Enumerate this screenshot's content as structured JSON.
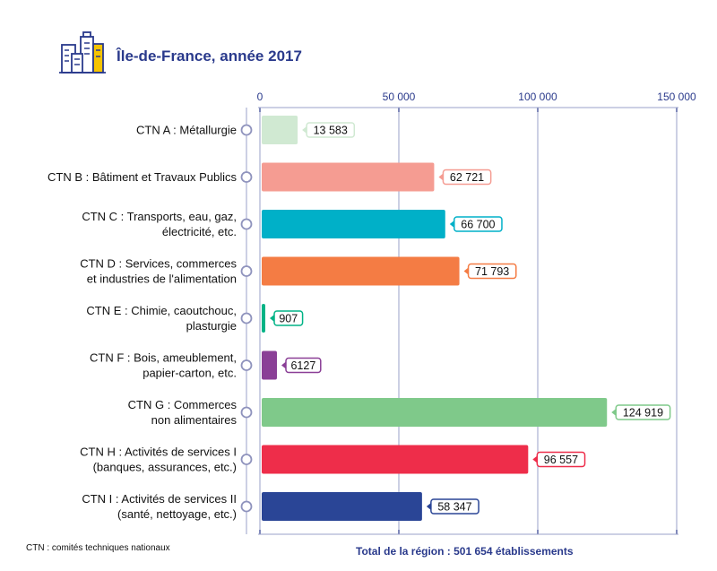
{
  "header": {
    "title": "Île-de-France, année 2017",
    "icon": "city-buildings-icon"
  },
  "footnote": "CTN : comités techniques nationaux",
  "total": "Total de la région : 501 654 établissements",
  "colors": {
    "axis": "#2a3a8c",
    "gridline": "#9aa0c8"
  },
  "chart_data": {
    "type": "bar",
    "orientation": "horizontal",
    "xlim": [
      0,
      150000
    ],
    "ticks": [
      0,
      50000,
      100000,
      150000
    ],
    "tick_labels": [
      "0",
      "50 000",
      "100 000",
      "150 000"
    ],
    "grid": true,
    "categories": [
      [
        "CTN A : Métallurgie"
      ],
      [
        "CTN B : Bâtiment et Travaux Publics"
      ],
      [
        "CTN C : Transports, eau, gaz,",
        "électricité, etc."
      ],
      [
        "CTN D : Services, commerces",
        "et industries de l'alimentation"
      ],
      [
        "CTN E : Chimie, caoutchouc,",
        "plasturgie"
      ],
      [
        "CTN F : Bois, ameublement,",
        "papier-carton, etc."
      ],
      [
        "CTN G : Commerces",
        "non alimentaires"
      ],
      [
        "CTN H : Activités de services I",
        "(banques, assurances, etc.)"
      ],
      [
        "CTN I : Activités de services II",
        "(santé, nettoyage, etc.)"
      ]
    ],
    "values": [
      13583,
      62721,
      66700,
      71793,
      907,
      6127,
      124919,
      96557,
      58347
    ],
    "value_labels": [
      "13 583",
      "62 721",
      "66 700",
      "71 793",
      "907",
      "6127",
      "124 919",
      "96 557",
      "58 347"
    ],
    "bar_colors": [
      "#d0e9d2",
      "#f59c92",
      "#00b0c8",
      "#f47c44",
      "#00b386",
      "#8a3f96",
      "#7fc98a",
      "#ee2d4a",
      "#2a4596"
    ]
  }
}
